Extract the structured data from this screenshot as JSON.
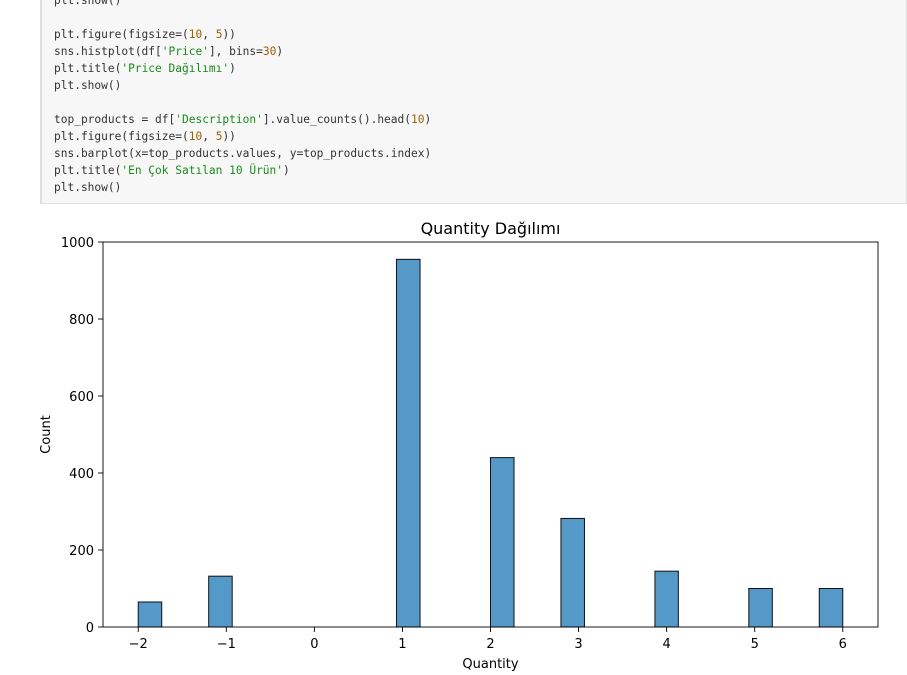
{
  "code_cell": {
    "lines": [
      [
        {
          "t": "plt.show()",
          "c": ""
        }
      ],
      [],
      [
        {
          "t": "plt.figure(figsize=(",
          "c": ""
        },
        {
          "t": "10",
          "c": "num"
        },
        {
          "t": ", ",
          "c": ""
        },
        {
          "t": "5",
          "c": "num"
        },
        {
          "t": "))",
          "c": ""
        }
      ],
      [
        {
          "t": "sns.histplot(df[",
          "c": ""
        },
        {
          "t": "'Price'",
          "c": "str"
        },
        {
          "t": "], bins=",
          "c": ""
        },
        {
          "t": "30",
          "c": "num"
        },
        {
          "t": ")",
          "c": ""
        }
      ],
      [
        {
          "t": "plt.title(",
          "c": ""
        },
        {
          "t": "'Price Dağılımı'",
          "c": "str"
        },
        {
          "t": ")",
          "c": ""
        }
      ],
      [
        {
          "t": "plt.show()",
          "c": ""
        }
      ],
      [],
      [
        {
          "t": "top_products = df[",
          "c": ""
        },
        {
          "t": "'Description'",
          "c": "str"
        },
        {
          "t": "].value_counts().head(",
          "c": ""
        },
        {
          "t": "10",
          "c": "num"
        },
        {
          "t": ")",
          "c": ""
        }
      ],
      [
        {
          "t": "plt.figure(figsize=(",
          "c": ""
        },
        {
          "t": "10",
          "c": "num"
        },
        {
          "t": ", ",
          "c": ""
        },
        {
          "t": "5",
          "c": "num"
        },
        {
          "t": "))",
          "c": ""
        }
      ],
      [
        {
          "t": "sns.barplot(x=top_products.values, y=top_products.index)",
          "c": ""
        }
      ],
      [
        {
          "t": "plt.title(",
          "c": ""
        },
        {
          "t": "'En Çok Satılan 10 Ürün'",
          "c": "str"
        },
        {
          "t": ")",
          "c": ""
        }
      ],
      [
        {
          "t": "plt.show()",
          "c": ""
        }
      ]
    ]
  },
  "chart_data": {
    "type": "bar",
    "title": "Quantity Dağılımı",
    "xlabel": "Quantity",
    "ylabel": "Count",
    "xlim": [
      -2.4,
      6.4
    ],
    "ylim": [
      0,
      1000
    ],
    "xticks": [
      -2,
      -1,
      0,
      1,
      2,
      3,
      4,
      5,
      6
    ],
    "xtick_labels": [
      "−2",
      "−1",
      "0",
      "1",
      "2",
      "3",
      "4",
      "5",
      "6"
    ],
    "yticks": [
      0,
      200,
      400,
      600,
      800,
      1000
    ],
    "bins": [
      {
        "x0": -2.0,
        "x1": -1.733,
        "count": 65
      },
      {
        "x0": -1.2,
        "x1": -0.933,
        "count": 132
      },
      {
        "x0": 0.933,
        "x1": 1.2,
        "count": 955
      },
      {
        "x0": 2.0,
        "x1": 2.267,
        "count": 440
      },
      {
        "x0": 2.8,
        "x1": 3.067,
        "count": 282
      },
      {
        "x0": 3.867,
        "x1": 4.133,
        "count": 145
      },
      {
        "x0": 4.933,
        "x1": 5.2,
        "count": 100
      },
      {
        "x0": 5.733,
        "x1": 6.0,
        "count": 100
      }
    ],
    "bar_color": "#5499c7",
    "edge_color": "#111111"
  }
}
